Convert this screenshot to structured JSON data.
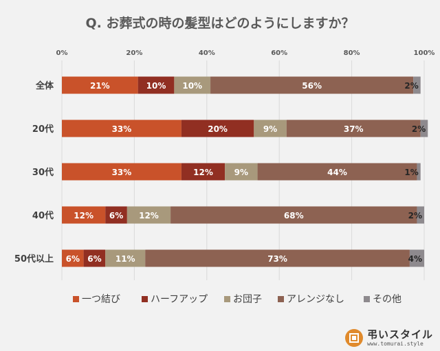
{
  "chart_data": {
    "type": "bar",
    "stacked": true,
    "orientation": "horizontal",
    "percent_stacked": true,
    "title": "Q. お葬式の時の髪型はどのようにしますか？",
    "categories": [
      "全体",
      "20代",
      "30代",
      "40代",
      "50代以上"
    ],
    "x_ticks": [
      "0%",
      "20%",
      "40%",
      "60%",
      "80%",
      "100%"
    ],
    "xlim": [
      0,
      100
    ],
    "grid": true,
    "legend_position": "bottom",
    "series": [
      {
        "name": "一つ結び",
        "color": "#c9522a",
        "values": [
          21,
          33,
          33,
          12,
          6
        ],
        "labels": [
          "21%",
          "33%",
          "33%",
          "12%",
          "6%"
        ]
      },
      {
        "name": "ハーフアップ",
        "color": "#912f22",
        "values": [
          10,
          20,
          12,
          6,
          6
        ],
        "labels": [
          "10%",
          "20%",
          "12%",
          "6%",
          "6%"
        ]
      },
      {
        "name": "お団子",
        "color": "#a8997c",
        "values": [
          10,
          9,
          9,
          12,
          11
        ],
        "labels": [
          "10%",
          "9%",
          "9%",
          "12%",
          "11%"
        ]
      },
      {
        "name": "アレンジなし",
        "color": "#8d6252",
        "values": [
          56,
          37,
          44,
          68,
          73
        ],
        "labels": [
          "56%",
          "37%",
          "44%",
          "68%",
          "73%"
        ]
      },
      {
        "name": "その他",
        "color": "#8e8a8e",
        "values": [
          2,
          2,
          1,
          2,
          4
        ],
        "labels": [
          "2%",
          "2%",
          "1%",
          "2%",
          "4%"
        ]
      }
    ]
  },
  "logo": {
    "name": "弔いスタイル",
    "url": "www.tomurai.style",
    "mark": "弔"
  }
}
